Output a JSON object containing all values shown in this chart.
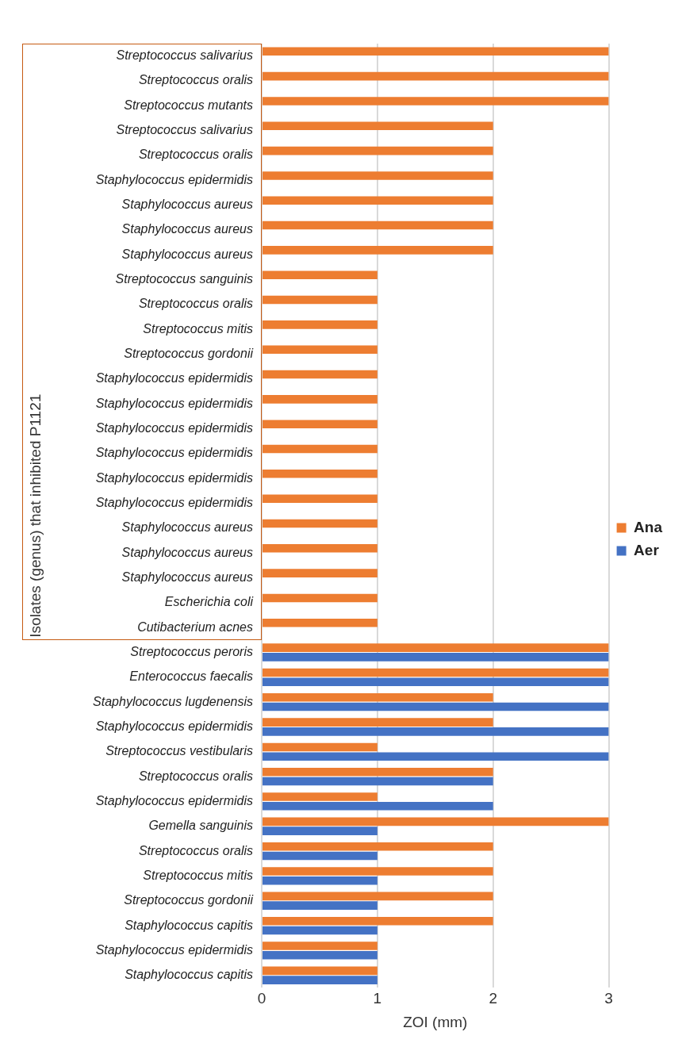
{
  "chart_data": {
    "type": "bar",
    "orientation": "horizontal",
    "xlabel": "ZOI (mm)",
    "ylabel": "Isolates (genus) that inhibited P1121",
    "categories": [
      "Streptococcus salivarius",
      "Streptococcus oralis",
      "Streptococcus mutants",
      "Streptococcus salivarius",
      "Streptococcus oralis",
      "Staphylococcus epidermidis",
      "Staphylococcus aureus",
      "Staphylococcus aureus",
      "Staphylococcus aureus",
      "Streptococcus sanguinis",
      "Streptococcus oralis",
      "Streptococcus mitis",
      "Streptococcus gordonii",
      "Staphylococcus epidermidis",
      "Staphylococcus epidermidis",
      "Staphylococcus epidermidis",
      "Staphylococcus epidermidis",
      "Staphylococcus epidermidis",
      "Staphylococcus epidermidis",
      "Staphylococcus aureus",
      "Staphylococcus aureus",
      "Staphylococcus aureus",
      "Escherichia coli",
      "Cutibacterium acnes",
      "Streptococcus peroris",
      "Enterococcus faecalis",
      "Staphylococcus lugdenensis",
      "Staphylococcus epidermidis",
      "Streptococcus vestibularis",
      "Streptococcus oralis",
      "Staphylococcus epidermidis",
      "Gemella sanguinis",
      "Streptococcus oralis",
      "Streptococcus mitis",
      "Streptococcus gordonii",
      "Staphylococcus capitis",
      "Staphylococcus epidermidis",
      "Staphylococcus capitis"
    ],
    "series": [
      {
        "name": "Ana",
        "color": "#ed7d31",
        "values": [
          3,
          3,
          3,
          2,
          2,
          2,
          2,
          2,
          2,
          1,
          1,
          1,
          1,
          1,
          1,
          1,
          1,
          1,
          1,
          1,
          1,
          1,
          1,
          1,
          3,
          3,
          2,
          2,
          1,
          2,
          1,
          3,
          2,
          2,
          2,
          2,
          1,
          1
        ]
      },
      {
        "name": "Aer",
        "color": "#4472c4",
        "values": [
          null,
          null,
          null,
          null,
          null,
          null,
          null,
          null,
          null,
          null,
          null,
          null,
          null,
          null,
          null,
          null,
          null,
          null,
          null,
          null,
          null,
          null,
          null,
          null,
          3,
          3,
          3,
          3,
          3,
          2,
          2,
          1,
          1,
          1,
          1,
          1,
          1,
          1
        ]
      }
    ],
    "xlim": [
      0,
      3
    ],
    "xticks": [
      0,
      1,
      2,
      3
    ],
    "grid": "x",
    "legend": "right"
  }
}
